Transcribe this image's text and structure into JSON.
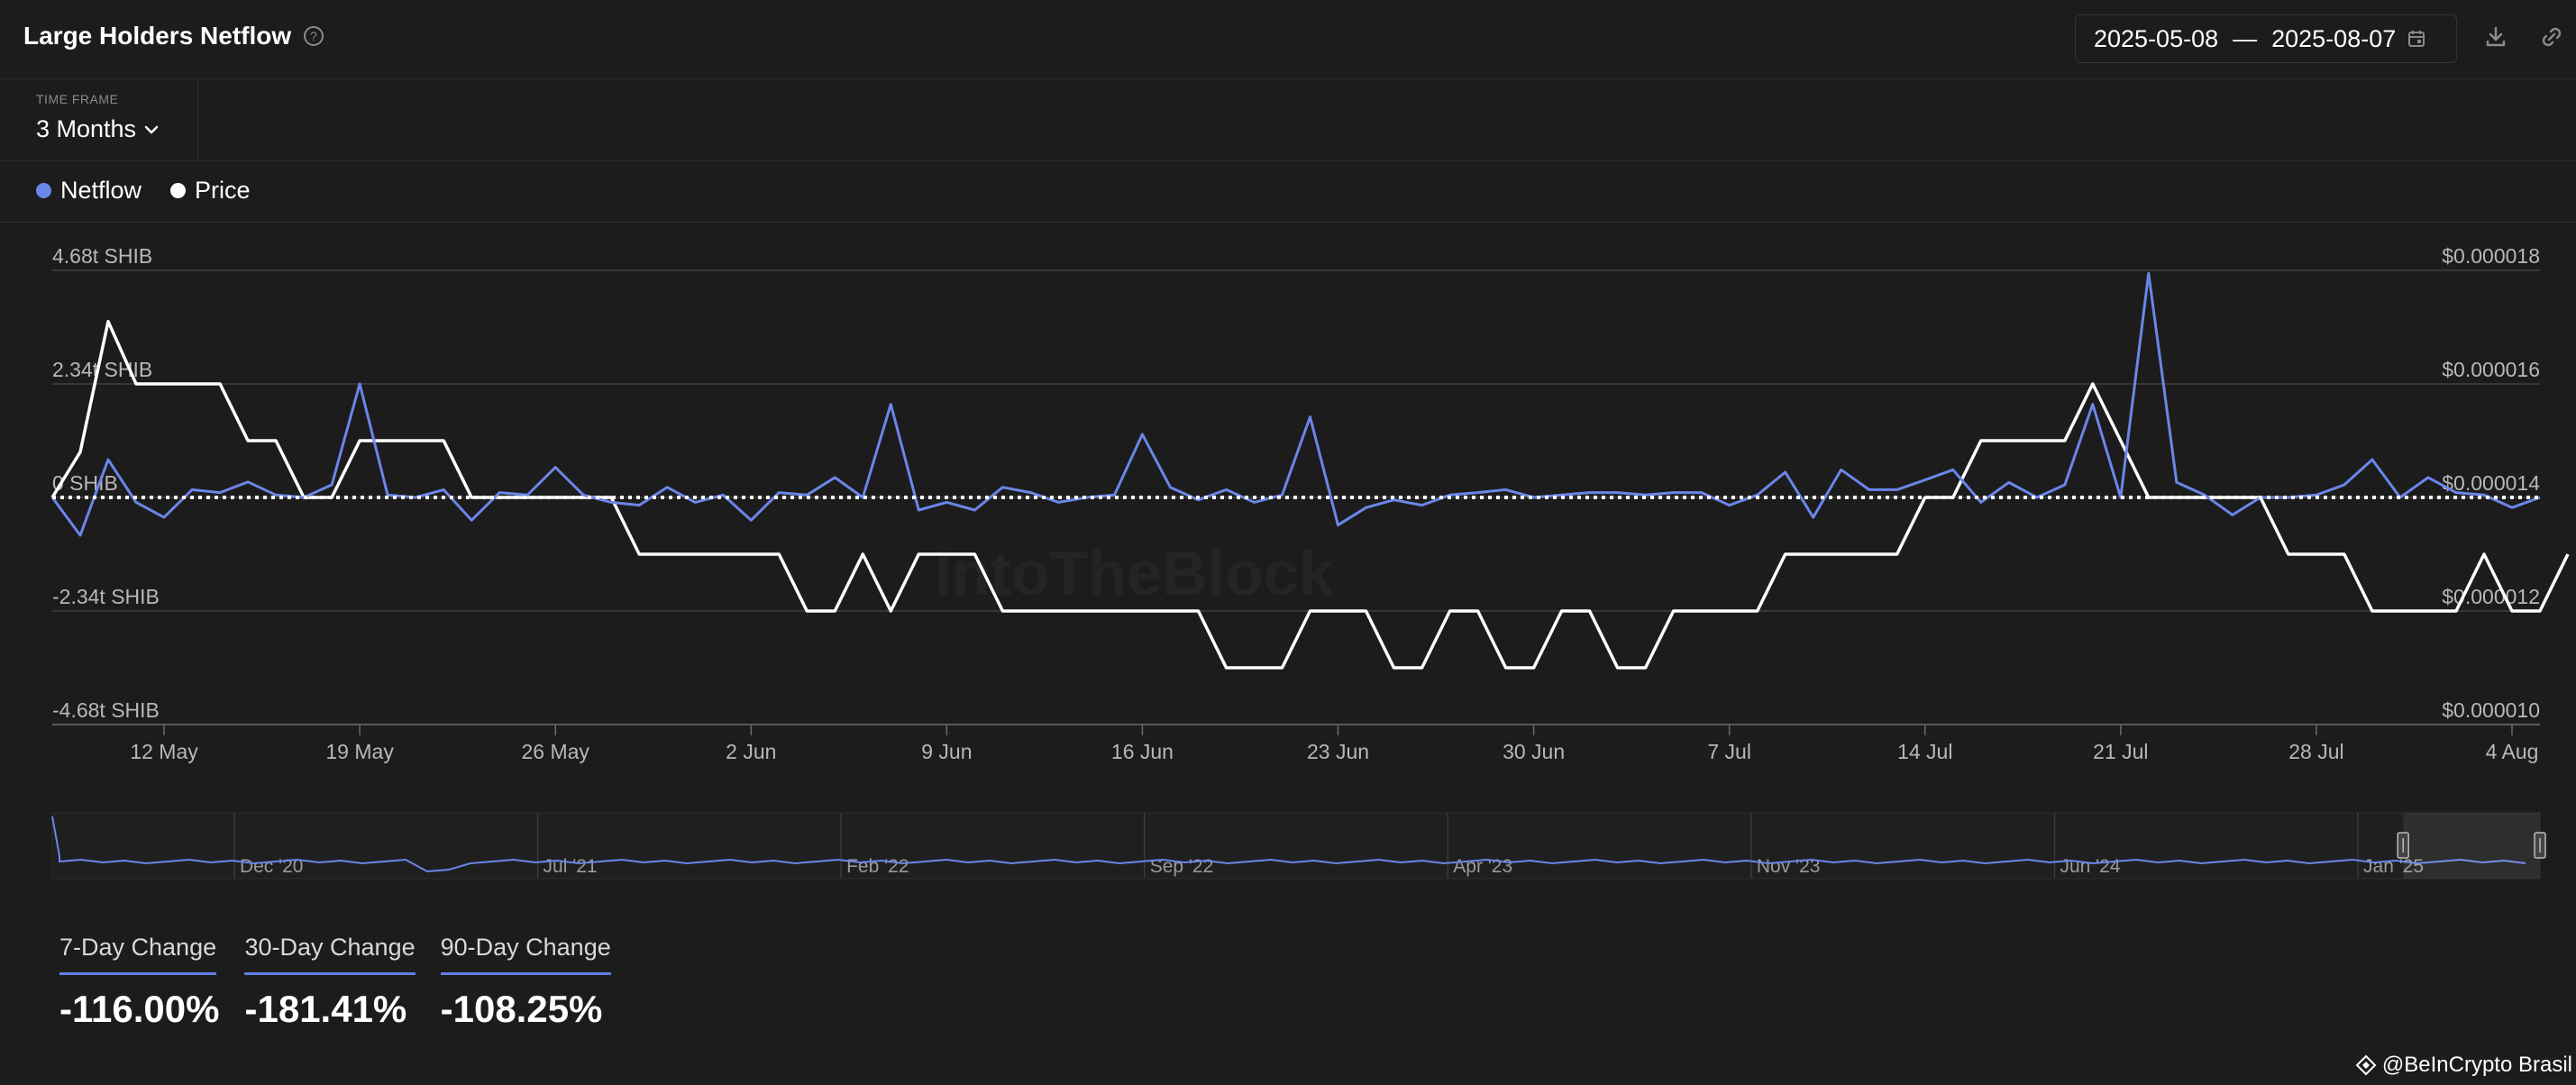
{
  "header": {
    "title": "Large Holders Netflow",
    "date_start": "2025-05-08",
    "date_separator": "—",
    "date_end": "2025-08-07",
    "icons": [
      "help-icon",
      "calendar-icon",
      "download-icon",
      "link-icon"
    ]
  },
  "timeframe": {
    "label": "TIME FRAME",
    "value": "3 Months"
  },
  "legend": [
    {
      "name": "Netflow",
      "color": "#6b86e8"
    },
    {
      "name": "Price",
      "color": "#ffffff"
    }
  ],
  "watermark": "IntoTheBlock",
  "chart_data": {
    "type": "line",
    "x_labels": [
      "12 May",
      "19 May",
      "26 May",
      "2 Jun",
      "9 Jun",
      "16 Jun",
      "23 Jun",
      "30 Jun",
      "7 Jul",
      "14 Jul",
      "21 Jul",
      "28 Jul",
      "4 Aug"
    ],
    "x_range": [
      "2025-05-08",
      "2025-08-07"
    ],
    "left_axis": {
      "ticks": [
        "4.68t SHIB",
        "2.34t SHIB",
        "0 SHIB",
        "-2.34t SHIB",
        "-4.68t SHIB"
      ],
      "tick_values": [
        4.68,
        2.34,
        0,
        -2.34,
        -4.68
      ],
      "range": [
        -4.68,
        4.68
      ],
      "unit": "t SHIB"
    },
    "right_axis": {
      "ticks": [
        "$0.000018",
        "$0.000016",
        "$0.000014",
        "$0.000012",
        "$0.000010"
      ],
      "tick_values": [
        1.8e-05,
        1.6e-05,
        1.4e-05,
        1.2e-05,
        1e-05
      ],
      "range": [
        1e-05,
        1.8e-05
      ]
    },
    "grid": true,
    "zero_line": "dotted",
    "series": [
      {
        "name": "Netflow",
        "axis": "left",
        "color": "#6b86e8",
        "values": [
          0,
          -0.78,
          0.78,
          -0.1,
          -0.41,
          0.16,
          0.1,
          0.32,
          0.05,
          0.0,
          0.26,
          2.34,
          0.05,
          0.0,
          0.16,
          -0.47,
          0.1,
          0.05,
          0.62,
          0.05,
          -0.1,
          -0.16,
          0.21,
          -0.1,
          0.05,
          -0.47,
          0.1,
          0.05,
          0.41,
          0.0,
          1.92,
          -0.26,
          -0.1,
          -0.26,
          0.21,
          0.1,
          -0.1,
          0.0,
          0.05,
          1.3,
          0.21,
          -0.05,
          0.16,
          -0.1,
          0.05,
          1.66,
          -0.57,
          -0.21,
          -0.05,
          -0.16,
          0.05,
          0.1,
          0.16,
          0.0,
          0.05,
          0.1,
          0.1,
          0.05,
          0.1,
          0.1,
          -0.16,
          0.05,
          0.52,
          -0.41,
          0.57,
          0.16,
          0.16,
          0.36,
          0.57,
          -0.1,
          0.31,
          0.0,
          0.26,
          1.92,
          0.0,
          4.62,
          0.31,
          0.05,
          -0.36,
          0.0,
          0.0,
          0.05,
          0.26,
          0.78,
          0.0,
          0.41,
          0.1,
          0.05,
          -0.21,
          0.0
        ]
      },
      {
        "name": "Price",
        "axis": "right",
        "color": "#ffffff",
        "values": [
          1.4e-05,
          1.48e-05,
          1.71e-05,
          1.6e-05,
          1.6e-05,
          1.6e-05,
          1.6e-05,
          1.5e-05,
          1.5e-05,
          1.4e-05,
          1.4e-05,
          1.5e-05,
          1.5e-05,
          1.5e-05,
          1.5e-05,
          1.4e-05,
          1.4e-05,
          1.4e-05,
          1.4e-05,
          1.4e-05,
          1.4e-05,
          1.3e-05,
          1.3e-05,
          1.3e-05,
          1.3e-05,
          1.3e-05,
          1.3e-05,
          1.2e-05,
          1.2e-05,
          1.3e-05,
          1.2e-05,
          1.3e-05,
          1.3e-05,
          1.3e-05,
          1.2e-05,
          1.2e-05,
          1.2e-05,
          1.2e-05,
          1.2e-05,
          1.2e-05,
          1.2e-05,
          1.2e-05,
          1.1e-05,
          1.1e-05,
          1.1e-05,
          1.2e-05,
          1.2e-05,
          1.2e-05,
          1.1e-05,
          1.1e-05,
          1.2e-05,
          1.2e-05,
          1.1e-05,
          1.1e-05,
          1.2e-05,
          1.2e-05,
          1.1e-05,
          1.1e-05,
          1.2e-05,
          1.2e-05,
          1.2e-05,
          1.2e-05,
          1.3e-05,
          1.3e-05,
          1.3e-05,
          1.3e-05,
          1.3e-05,
          1.4e-05,
          1.4e-05,
          1.5e-05,
          1.5e-05,
          1.5e-05,
          1.5e-05,
          1.6e-05,
          1.5e-05,
          1.4e-05,
          1.4e-05,
          1.4e-05,
          1.4e-05,
          1.4e-05,
          1.3e-05,
          1.3e-05,
          1.3e-05,
          1.2e-05,
          1.2e-05,
          1.2e-05,
          1.2e-05,
          1.3e-05,
          1.2e-05,
          1.2e-05,
          1.3e-05
        ]
      }
    ],
    "navigator": {
      "labels": [
        "Dec '20",
        "Jul '21",
        "Feb '22",
        "Sep '22",
        "Apr '23",
        "Nov '23",
        "Jun '24",
        "Jan '25"
      ],
      "selected_fraction": [
        0.945,
        1.0
      ]
    }
  },
  "stats": [
    {
      "label": "7-Day Change",
      "value": "-116.00%"
    },
    {
      "label": "30-Day Change",
      "value": "-181.41%"
    },
    {
      "label": "90-Day Change",
      "value": "-108.25%"
    }
  ],
  "credit": "@BeInCrypto Brasil"
}
